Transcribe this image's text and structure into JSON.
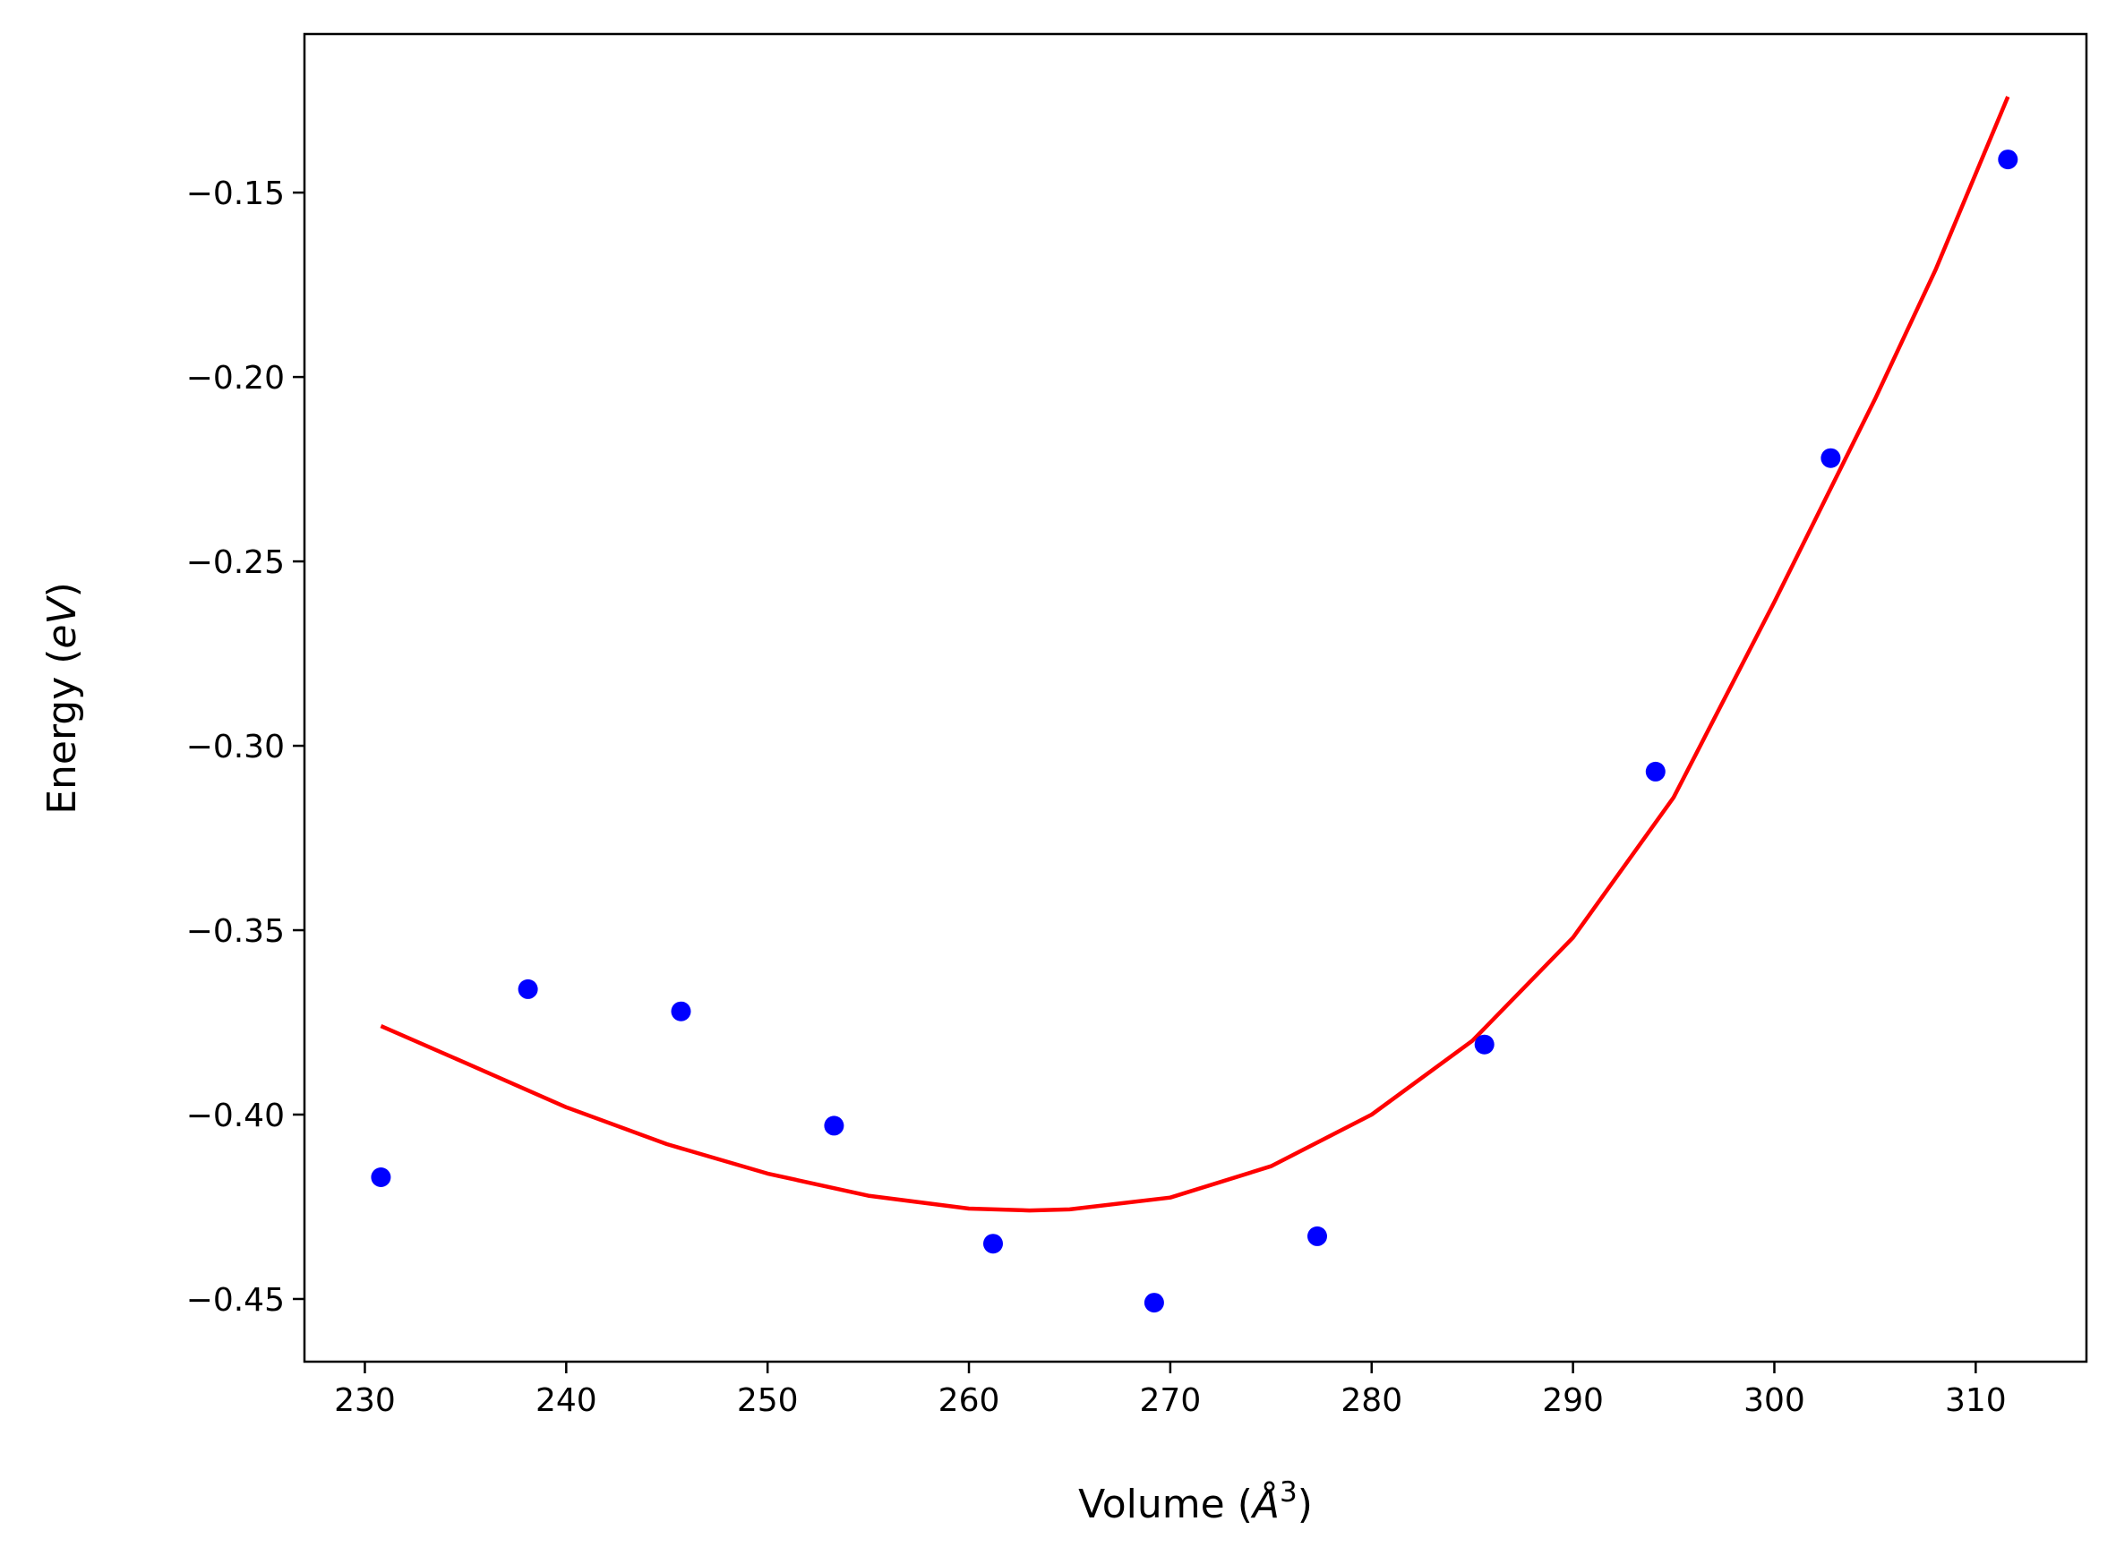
{
  "chart_data": {
    "type": "scatter",
    "title": "",
    "xlabel": "Volume (",
    "xlabel_symbol": "Å",
    "xlabel_exp": "3",
    "xlabel_close": ")",
    "ylabel": "Energy (",
    "ylabel_unit": "eV",
    "ylabel_close": ")",
    "xlim": [
      227,
      315.5
    ],
    "ylim": [
      -0.467,
      -0.107
    ],
    "xticks": [
      230,
      240,
      250,
      260,
      270,
      280,
      290,
      300,
      310
    ],
    "xtick_labels": [
      "230",
      "240",
      "250",
      "260",
      "270",
      "280",
      "290",
      "300",
      "310"
    ],
    "yticks": [
      -0.45,
      -0.4,
      -0.35,
      -0.3,
      -0.25,
      -0.2,
      -0.15
    ],
    "ytick_labels": [
      "−0.45",
      "−0.40",
      "−0.35",
      "−0.30",
      "−0.25",
      "−0.20",
      "−0.15"
    ],
    "grid": false,
    "legend": "none",
    "series": [
      {
        "kind": "scatter",
        "color": "#0000ff",
        "x": [
          230.8,
          238.1,
          245.7,
          253.3,
          261.2,
          269.2,
          277.3,
          285.6,
          294.1,
          302.8,
          311.6
        ],
        "y": [
          -0.417,
          -0.366,
          -0.372,
          -0.403,
          -0.435,
          -0.451,
          -0.433,
          -0.381,
          -0.307,
          -0.222,
          -0.141
        ]
      },
      {
        "kind": "line",
        "color": "#ff0000",
        "x": [
          230.8,
          235,
          240,
          245,
          250,
          255,
          260,
          263,
          265,
          270,
          275,
          280,
          285,
          290,
          295,
          300,
          305,
          308,
          311.6
        ],
        "y": [
          -0.376,
          -0.386,
          -0.398,
          -0.408,
          -0.416,
          -0.422,
          -0.4255,
          -0.426,
          -0.4257,
          -0.4225,
          -0.414,
          -0.4,
          -0.38,
          -0.352,
          -0.314,
          -0.261,
          -0.206,
          -0.171,
          -0.124
        ]
      }
    ]
  }
}
